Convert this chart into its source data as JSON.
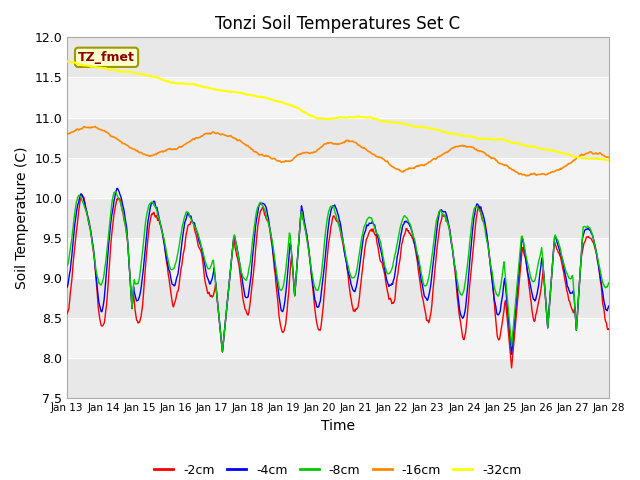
{
  "title": "Tonzi Soil Temperatures Set C",
  "xlabel": "Time",
  "ylabel": "Soil Temperature (C)",
  "ylim": [
    7.5,
    12.0
  ],
  "yticks": [
    7.5,
    8.0,
    8.5,
    9.0,
    9.5,
    10.0,
    10.5,
    11.0,
    11.5,
    12.0
  ],
  "x_tick_labels": [
    "Jan 13",
    "Jan 14",
    "Jan 15",
    "Jan 16",
    "Jan 17",
    "Jan 18",
    "Jan 19",
    "Jan 20",
    "Jan 21",
    "Jan 22",
    "Jan 23",
    "Jan 24",
    "Jan 25",
    "Jan 26",
    "Jan 27",
    "Jan 28"
  ],
  "legend_labels": [
    "-2cm",
    "-4cm",
    "-8cm",
    "-16cm",
    "-32cm"
  ],
  "colors": [
    "#ff0000",
    "#0000ff",
    "#00cc00",
    "#ff8800",
    "#ffff00"
  ],
  "annotation_text": "TZ_fmet",
  "annotation_color": "#8b0000",
  "annotation_bg": "#ffffcc",
  "figsize": [
    6.4,
    4.8
  ],
  "dpi": 100
}
